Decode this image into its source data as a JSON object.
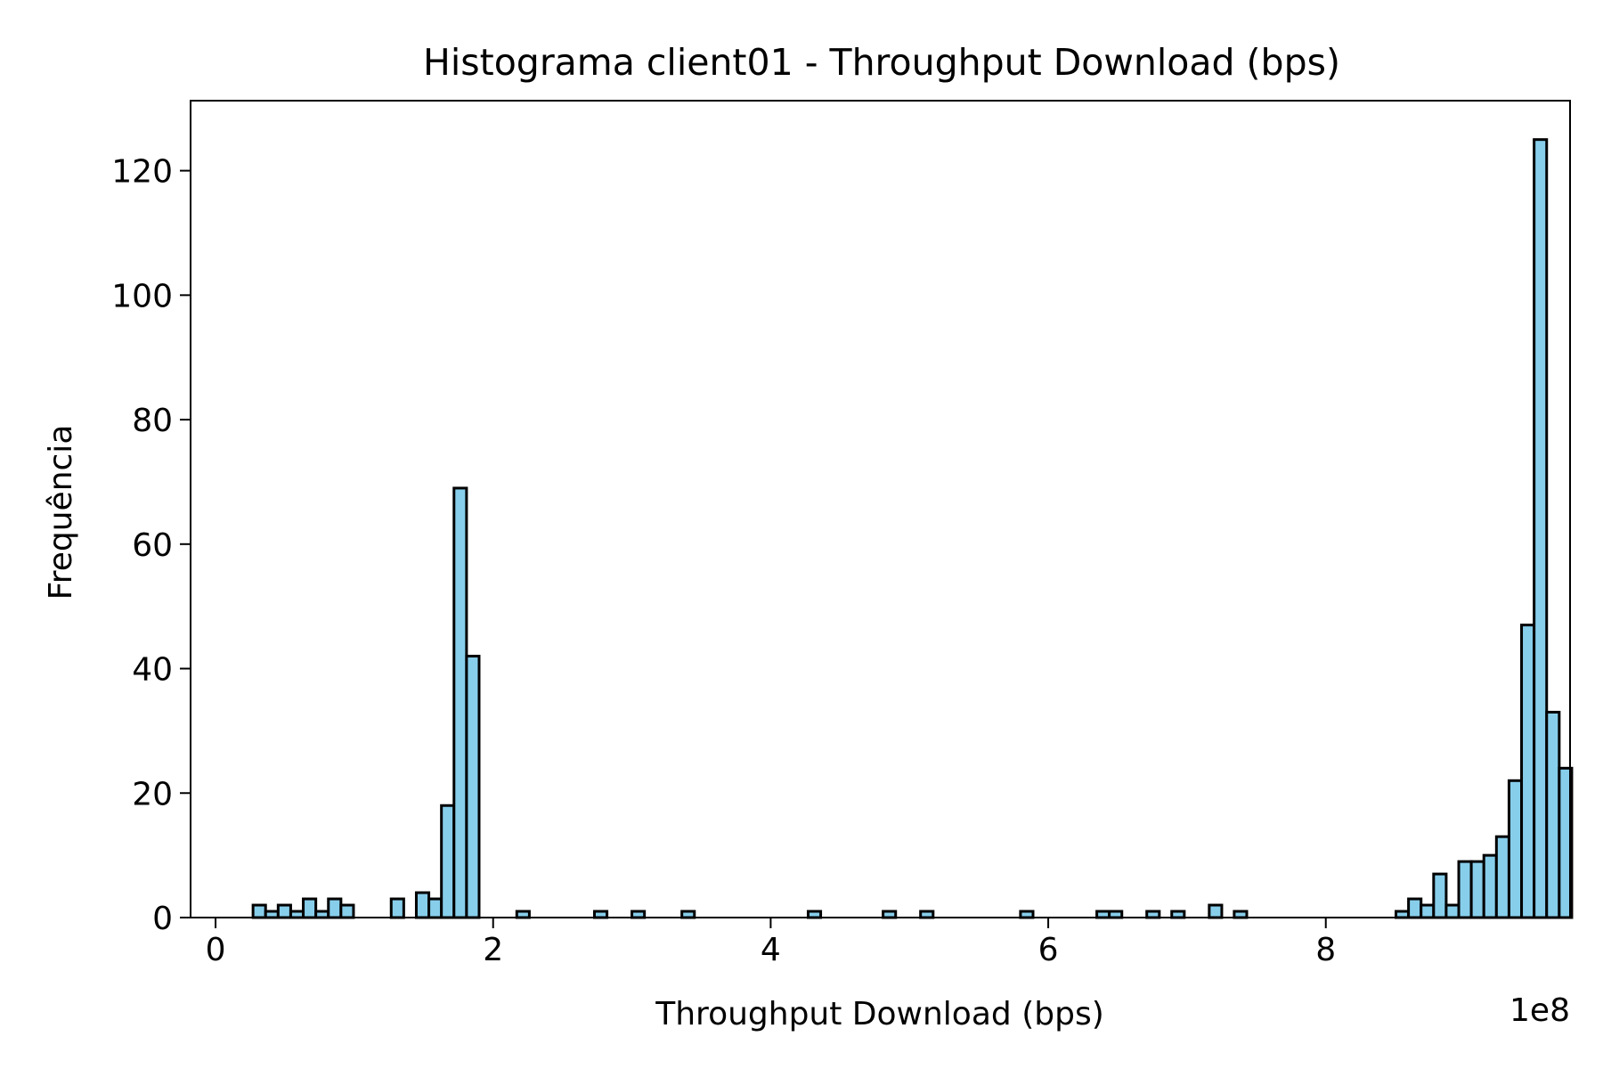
{
  "chart_data": {
    "type": "bar",
    "title": "Histograma client01 - Throughput Download (bps)",
    "xlabel": "Throughput Download (bps)",
    "ylabel": "Frequência",
    "x_offset_label": "1e8",
    "xlim": [
      -0.18,
      9.76
    ],
    "ylim": [
      0,
      131.25
    ],
    "xticks": [
      0,
      2,
      4,
      6,
      8
    ],
    "xtick_labels": [
      "0",
      "2",
      "4",
      "6",
      "8"
    ],
    "yticks": [
      0,
      20,
      40,
      60,
      80,
      100,
      120
    ],
    "ytick_labels": [
      "0",
      "20",
      "40",
      "60",
      "80",
      "100",
      "120"
    ],
    "bar_color": "#87ceeb",
    "edge_color": "#000000",
    "grid": false,
    "bin_start": 0.27,
    "bin_width": 0.0905,
    "values": [
      2,
      1,
      2,
      1,
      3,
      1,
      3,
      2,
      0,
      0,
      0,
      3,
      0,
      4,
      3,
      18,
      69,
      42,
      0,
      0,
      0,
      1,
      0,
      0,
      0,
      0,
      0,
      0,
      0,
      0,
      0,
      0,
      0,
      0,
      0,
      0,
      0,
      0,
      0,
      0,
      0,
      0,
      0,
      0,
      0,
      0,
      0,
      0,
      0,
      0,
      0,
      0,
      0,
      0,
      0,
      0,
      0,
      0,
      0,
      0,
      0,
      0,
      0,
      0,
      0,
      0,
      0,
      0,
      0,
      0,
      0,
      0,
      0,
      0,
      0,
      0,
      0,
      0,
      0,
      0,
      0,
      0,
      0,
      0,
      0,
      0,
      0,
      0,
      0,
      0,
      0,
      1,
      3,
      2,
      7,
      2,
      9,
      9,
      10,
      13,
      22,
      47,
      125,
      33,
      24
    ],
    "isolated_bars": [
      {
        "x": 2.73,
        "value": 1
      },
      {
        "x": 3.0,
        "value": 1
      },
      {
        "x": 3.36,
        "value": 1
      },
      {
        "x": 4.27,
        "value": 1
      },
      {
        "x": 4.81,
        "value": 1
      },
      {
        "x": 5.08,
        "value": 1
      },
      {
        "x": 5.8,
        "value": 1
      },
      {
        "x": 6.35,
        "value": 1
      },
      {
        "x": 6.44,
        "value": 1
      },
      {
        "x": 6.71,
        "value": 1
      },
      {
        "x": 6.89,
        "value": 1
      },
      {
        "x": 7.16,
        "value": 2
      },
      {
        "x": 7.34,
        "value": 1
      }
    ]
  }
}
